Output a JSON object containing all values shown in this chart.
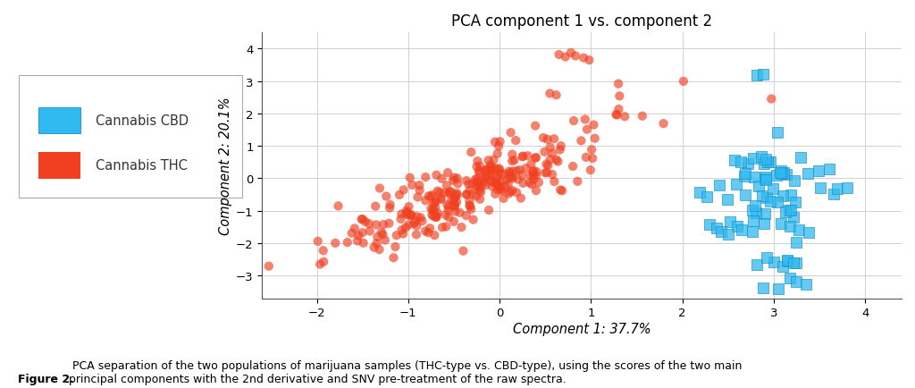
{
  "title": "PCA component 1 vs. component 2",
  "xlabel": "Component 1: 37.7%",
  "ylabel": "Component 2: 20.1%",
  "xlim": [
    -2.6,
    4.4
  ],
  "ylim": [
    -3.7,
    4.5
  ],
  "xticks": [
    -2,
    -1,
    0,
    1,
    2,
    3,
    4
  ],
  "yticks": [
    -3,
    -2,
    -1,
    0,
    1,
    2,
    3,
    4
  ],
  "thc_color": "#F04020",
  "thc_alpha": 0.65,
  "cbd_color": "#30B8F0",
  "cbd_alpha": 0.75,
  "background_color": "#ffffff",
  "grid_color": "#d0d0d0",
  "thc_seed": 42,
  "cbd_seed": 99,
  "thc_n_main": 220,
  "thc_x_mean": -0.3,
  "thc_x_std": 0.85,
  "thc_slope": 1.15,
  "thc_noise": 0.22,
  "thc_outliers_x": [
    0.65,
    0.72,
    0.78,
    0.83,
    0.92,
    0.98,
    0.55,
    0.62,
    1.3
  ],
  "thc_outliers_y": [
    3.82,
    3.75,
    3.88,
    3.78,
    3.72,
    3.65,
    2.62,
    2.57,
    2.92
  ],
  "cbd_main_x": 2.95,
  "cbd_main_y": -0.35,
  "cbd_x_std": 0.32,
  "cbd_y_std": 0.62,
  "cbd_n_main": 55,
  "cbd_extra_x": [
    2.82,
    2.88,
    2.3,
    2.38,
    2.52,
    2.6,
    2.65,
    2.42,
    2.5,
    3.7,
    3.8,
    2.82,
    3.0,
    3.1,
    3.18,
    3.25,
    3.35,
    2.88,
    3.05,
    3.15,
    3.25,
    2.78,
    3.08,
    3.18,
    3.28,
    3.38,
    2.92,
    3.15,
    3.22
  ],
  "cbd_extra_y": [
    3.18,
    3.22,
    -1.42,
    -1.52,
    -1.35,
    -1.48,
    -1.58,
    -1.65,
    -1.72,
    -0.32,
    -0.28,
    -2.65,
    -2.58,
    -2.72,
    -3.08,
    -3.18,
    -3.28,
    -3.38,
    -3.42,
    -2.55,
    -2.62,
    -1.3,
    -1.38,
    -1.48,
    -1.58,
    -1.68,
    -2.45,
    -2.52,
    -2.62
  ],
  "legend_cbd_label": "Cannabis CBD",
  "legend_thc_label": "Cannabis THC",
  "marker_size_thc": 55,
  "marker_size_cbd": 70,
  "figure_caption_bold": "Figure 2.",
  "figure_caption_normal": " PCA separation of the two populations of marijuana samples (THC-type vs. CBD-type), using the scores of the two main\nprincipal components with the 2nd derivative and SNV pre-treatment of the raw spectra."
}
